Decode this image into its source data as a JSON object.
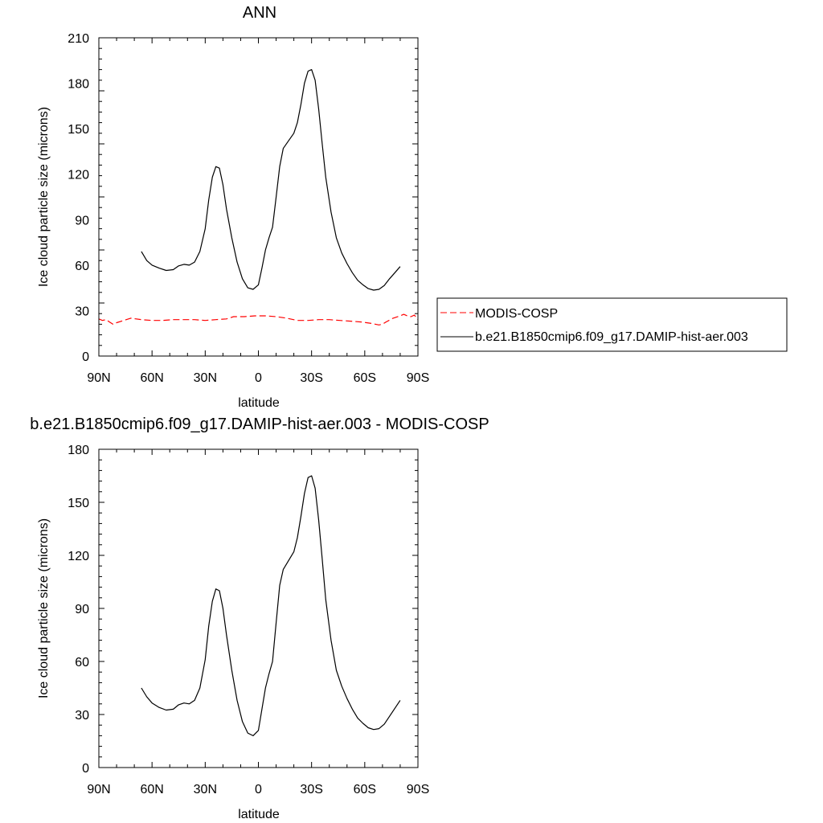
{
  "chart_data": [
    {
      "type": "line",
      "title": "ANN",
      "xlabel": "latitude",
      "ylabel": "Ice cloud particle size (microns)",
      "xlim": [
        90,
        -90
      ],
      "ylim": [
        0,
        210
      ],
      "x_ticks": [
        90,
        60,
        30,
        0,
        -30,
        -60,
        -90
      ],
      "x_tick_labels": [
        "90N",
        "60N",
        "30N",
        "0",
        "30S",
        "60S",
        "90S"
      ],
      "y_ticks": [
        0,
        30,
        60,
        90,
        120,
        150,
        180,
        210
      ],
      "y_tick_labels": [
        "0",
        "30",
        "60",
        "90",
        "120",
        "150",
        "180",
        "210"
      ],
      "grid": false,
      "legend_position": "right",
      "series": [
        {
          "name": "MODIS-COSP",
          "color": "#ff0000",
          "dash": "dashed",
          "points": [
            [
              90,
              24.5
            ],
            [
              88,
              23.5
            ],
            [
              86,
              24
            ],
            [
              84,
              22.5
            ],
            [
              82,
              21
            ],
            [
              80,
              22
            ],
            [
              76,
              23.5
            ],
            [
              72,
              25
            ],
            [
              66,
              24
            ],
            [
              60,
              23.5
            ],
            [
              54,
              23.5
            ],
            [
              48,
              24
            ],
            [
              42,
              24
            ],
            [
              36,
              24
            ],
            [
              30,
              23.5
            ],
            [
              24,
              24
            ],
            [
              18,
              24.5
            ],
            [
              14,
              26
            ],
            [
              8,
              26
            ],
            [
              2,
              26.5
            ],
            [
              -4,
              26.5
            ],
            [
              -10,
              26
            ],
            [
              -16,
              25
            ],
            [
              -22,
              23.5
            ],
            [
              -28,
              23.5
            ],
            [
              -34,
              24
            ],
            [
              -40,
              24
            ],
            [
              -46,
              23.5
            ],
            [
              -52,
              23
            ],
            [
              -58,
              22.5
            ],
            [
              -64,
              21.5
            ],
            [
              -68,
              20.5
            ],
            [
              -70,
              21
            ],
            [
              -72,
              22.5
            ],
            [
              -76,
              25
            ],
            [
              -80,
              26.5
            ],
            [
              -82,
              27.5
            ],
            [
              -84,
              26.5
            ],
            [
              -86,
              26
            ],
            [
              -88,
              27
            ],
            [
              -90,
              24
            ]
          ]
        },
        {
          "name": "b.e21.B1850cmip6.f09_g17.DAMIP-hist-aer.003",
          "color": "#000000",
          "dash": "solid",
          "points": [
            [
              66,
              69
            ],
            [
              63,
              63
            ],
            [
              60,
              60
            ],
            [
              56,
              58
            ],
            [
              52,
              56.5
            ],
            [
              48,
              57
            ],
            [
              45,
              59.5
            ],
            [
              42,
              60.5
            ],
            [
              39,
              60
            ],
            [
              36,
              62
            ],
            [
              33,
              69
            ],
            [
              30,
              84
            ],
            [
              28,
              103
            ],
            [
              26,
              118
            ],
            [
              24,
              125
            ],
            [
              22,
              124
            ],
            [
              20,
              113
            ],
            [
              18,
              97
            ],
            [
              15,
              78
            ],
            [
              12,
              62
            ],
            [
              9,
              51
            ],
            [
              6,
              45
            ],
            [
              3,
              44
            ],
            [
              0,
              47
            ],
            [
              -2,
              58
            ],
            [
              -4,
              70
            ],
            [
              -6,
              78
            ],
            [
              -8,
              85
            ],
            [
              -10,
              105
            ],
            [
              -12,
              125
            ],
            [
              -14,
              137
            ],
            [
              -17,
              142
            ],
            [
              -20,
              147
            ],
            [
              -22,
              154
            ],
            [
              -24,
              166
            ],
            [
              -26,
              180
            ],
            [
              -28,
              188
            ],
            [
              -30,
              189
            ],
            [
              -32,
              182
            ],
            [
              -34,
              163
            ],
            [
              -36,
              140
            ],
            [
              -38,
              118
            ],
            [
              -41,
              95
            ],
            [
              -44,
              78
            ],
            [
              -47,
              68
            ],
            [
              -50,
              61
            ],
            [
              -53,
              55
            ],
            [
              -56,
              50
            ],
            [
              -59,
              47
            ],
            [
              -62,
              44.5
            ],
            [
              -65,
              43.5
            ],
            [
              -68,
              44
            ],
            [
              -71,
              46.5
            ],
            [
              -74,
              51
            ],
            [
              -77,
              55
            ],
            [
              -80,
              59
            ]
          ]
        }
      ]
    },
    {
      "type": "line",
      "title": "b.e21.B1850cmip6.f09_g17.DAMIP-hist-aer.003 - MODIS-COSP",
      "xlabel": "latitude",
      "ylabel": "Ice cloud particle size (microns)",
      "xlim": [
        90,
        -90
      ],
      "ylim": [
        0,
        180
      ],
      "x_ticks": [
        90,
        60,
        30,
        0,
        -30,
        -60,
        -90
      ],
      "x_tick_labels": [
        "90N",
        "60N",
        "30N",
        "0",
        "30S",
        "60S",
        "90S"
      ],
      "y_ticks": [
        0,
        30,
        60,
        90,
        120,
        150,
        180
      ],
      "y_tick_labels": [
        "0",
        "30",
        "60",
        "90",
        "120",
        "150",
        "180"
      ],
      "grid": false,
      "series": [
        {
          "color": "#000000",
          "dash": "solid",
          "points": [
            [
              66,
              45
            ],
            [
              63,
              40
            ],
            [
              60,
              36.5
            ],
            [
              56,
              34
            ],
            [
              52,
              32.5
            ],
            [
              48,
              33
            ],
            [
              45,
              35.5
            ],
            [
              42,
              36.5
            ],
            [
              39,
              36
            ],
            [
              36,
              38
            ],
            [
              33,
              45
            ],
            [
              30,
              61
            ],
            [
              28,
              80
            ],
            [
              26,
              94
            ],
            [
              24,
              101
            ],
            [
              22,
              100
            ],
            [
              20,
              90
            ],
            [
              18,
              75
            ],
            [
              15,
              55
            ],
            [
              12,
              38
            ],
            [
              9,
              26
            ],
            [
              6,
              19.5
            ],
            [
              3,
              18
            ],
            [
              0,
              21
            ],
            [
              -2,
              33
            ],
            [
              -4,
              45
            ],
            [
              -6,
              53
            ],
            [
              -8,
              60
            ],
            [
              -10,
              82
            ],
            [
              -12,
              103
            ],
            [
              -14,
              112
            ],
            [
              -17,
              117
            ],
            [
              -20,
              122
            ],
            [
              -22,
              130
            ],
            [
              -24,
              142
            ],
            [
              -26,
              155
            ],
            [
              -28,
              164
            ],
            [
              -30,
              165
            ],
            [
              -32,
              158
            ],
            [
              -34,
              140
            ],
            [
              -36,
              118
            ],
            [
              -38,
              95
            ],
            [
              -41,
              72
            ],
            [
              -44,
              55
            ],
            [
              -47,
              46
            ],
            [
              -50,
              39
            ],
            [
              -53,
              33
            ],
            [
              -56,
              28
            ],
            [
              -59,
              25
            ],
            [
              -62,
              22.5
            ],
            [
              -65,
              21.5
            ],
            [
              -68,
              22
            ],
            [
              -71,
              24.5
            ],
            [
              -74,
              29
            ],
            [
              -77,
              33.5
            ],
            [
              -80,
              38
            ]
          ]
        }
      ]
    }
  ]
}
